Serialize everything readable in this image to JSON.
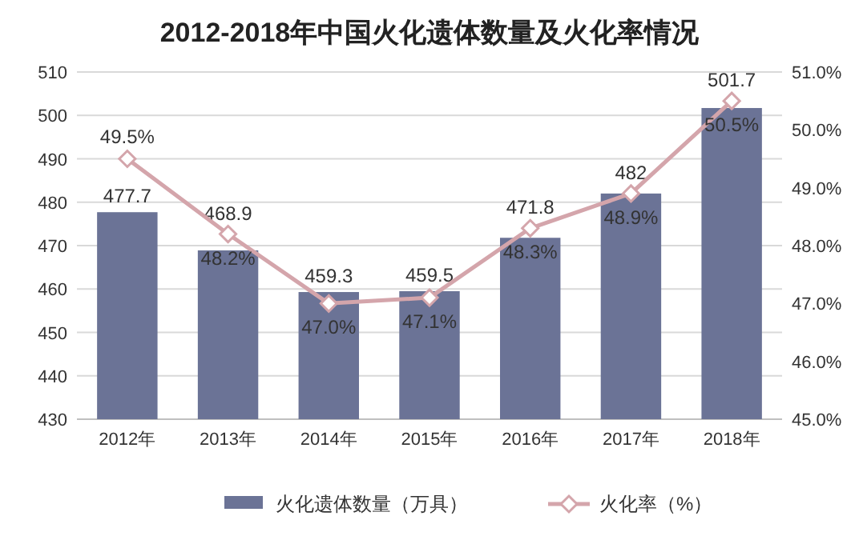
{
  "chart_data": {
    "type": "bar",
    "title": "2012-2018年中国火化遗体数量及火化率情况",
    "categories": [
      "2012年",
      "2013年",
      "2014年",
      "2015年",
      "2016年",
      "2017年",
      "2018年"
    ],
    "series": [
      {
        "name": "火化遗体数量（万具）",
        "color": "#6b7396",
        "values": [
          477.7,
          468.9,
          459.3,
          459.5,
          471.8,
          482,
          501.7
        ],
        "value_labels": [
          "477.7",
          "468.9",
          "459.3",
          "459.5",
          "471.8",
          "482",
          "501.7"
        ]
      },
      {
        "name": "火化率（%）",
        "type": "line",
        "axis": "y2",
        "color": "#d4a5ab",
        "marker": "diamond",
        "values": [
          49.5,
          48.2,
          47.0,
          47.1,
          48.3,
          48.9,
          50.5
        ],
        "value_labels": [
          "49.5%",
          "48.2%",
          "47.0%",
          "47.1%",
          "48.3%",
          "48.9%",
          "50.5%"
        ]
      }
    ],
    "ylim": [
      430,
      510
    ],
    "yticks": [
      430,
      440,
      450,
      460,
      470,
      480,
      490,
      500,
      510
    ],
    "y2lim": [
      45,
      51
    ],
    "y2ticks": [
      {
        "value": 45,
        "label": "45.0%"
      },
      {
        "value": 46,
        "label": "46.0%"
      },
      {
        "value": 47,
        "label": "47.0%"
      },
      {
        "value": 48,
        "label": "48.0%"
      },
      {
        "value": 49,
        "label": "49.0%"
      },
      {
        "value": 50,
        "label": "50.0%"
      },
      {
        "value": 51,
        "label": "51.0%"
      }
    ],
    "grid": "y",
    "legend": "bottom"
  }
}
